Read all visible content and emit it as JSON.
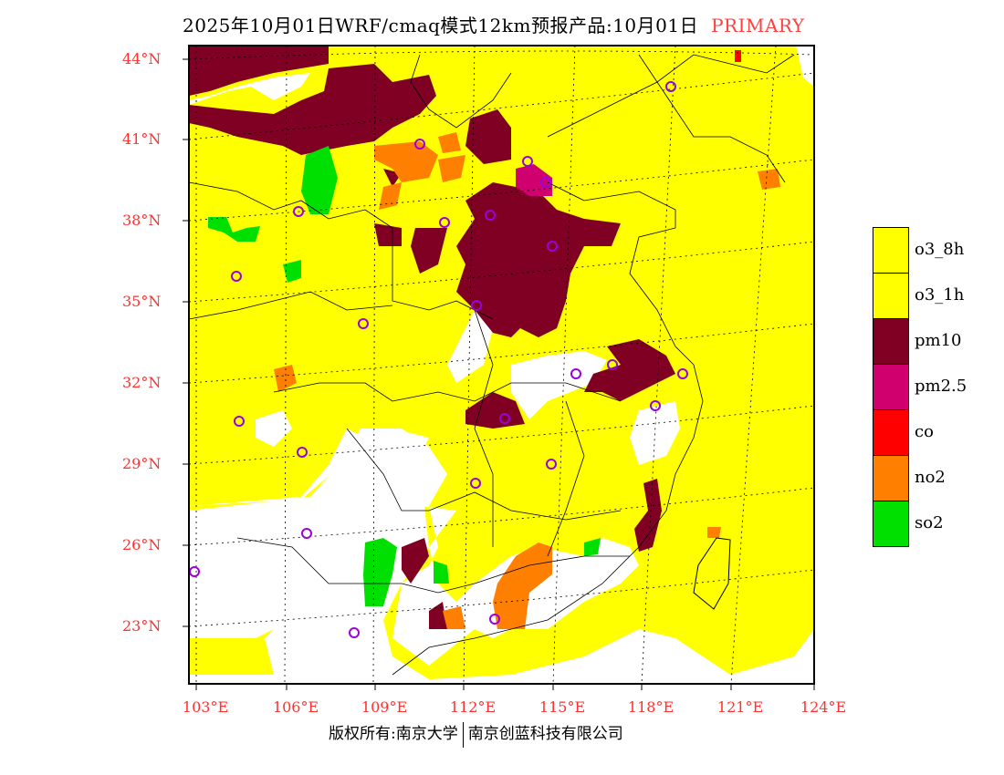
{
  "title": {
    "main": "2025年10月01日WRF/cmaq模式12km预报产品:10月01日",
    "tag": "PRIMARY"
  },
  "axes": {
    "lat_labels": [
      "44°N",
      "41°N",
      "38°N",
      "35°N",
      "32°N",
      "29°N",
      "26°N",
      "23°N"
    ],
    "lon_labels": [
      "103°E",
      "106°E",
      "109°E",
      "112°E",
      "115°E",
      "118°E",
      "121°E",
      "124°E"
    ]
  },
  "legend": [
    {
      "label": "o3_8h",
      "color": "#ffff00"
    },
    {
      "label": "o3_1h",
      "color": "#ffff00"
    },
    {
      "label": "pm10",
      "color": "#7f0023"
    },
    {
      "label": "pm2.5",
      "color": "#d0006e"
    },
    {
      "label": "co",
      "color": "#ff0000"
    },
    {
      "label": "no2",
      "color": "#ff7f00"
    },
    {
      "label": "so2",
      "color": "#00e000"
    }
  ],
  "footer": {
    "left": "版权所有:南京大学",
    "right": "南京创蓝科技有限公司"
  },
  "colors": {
    "station": "#9a00e0",
    "axis_label": "#ff3030"
  }
}
